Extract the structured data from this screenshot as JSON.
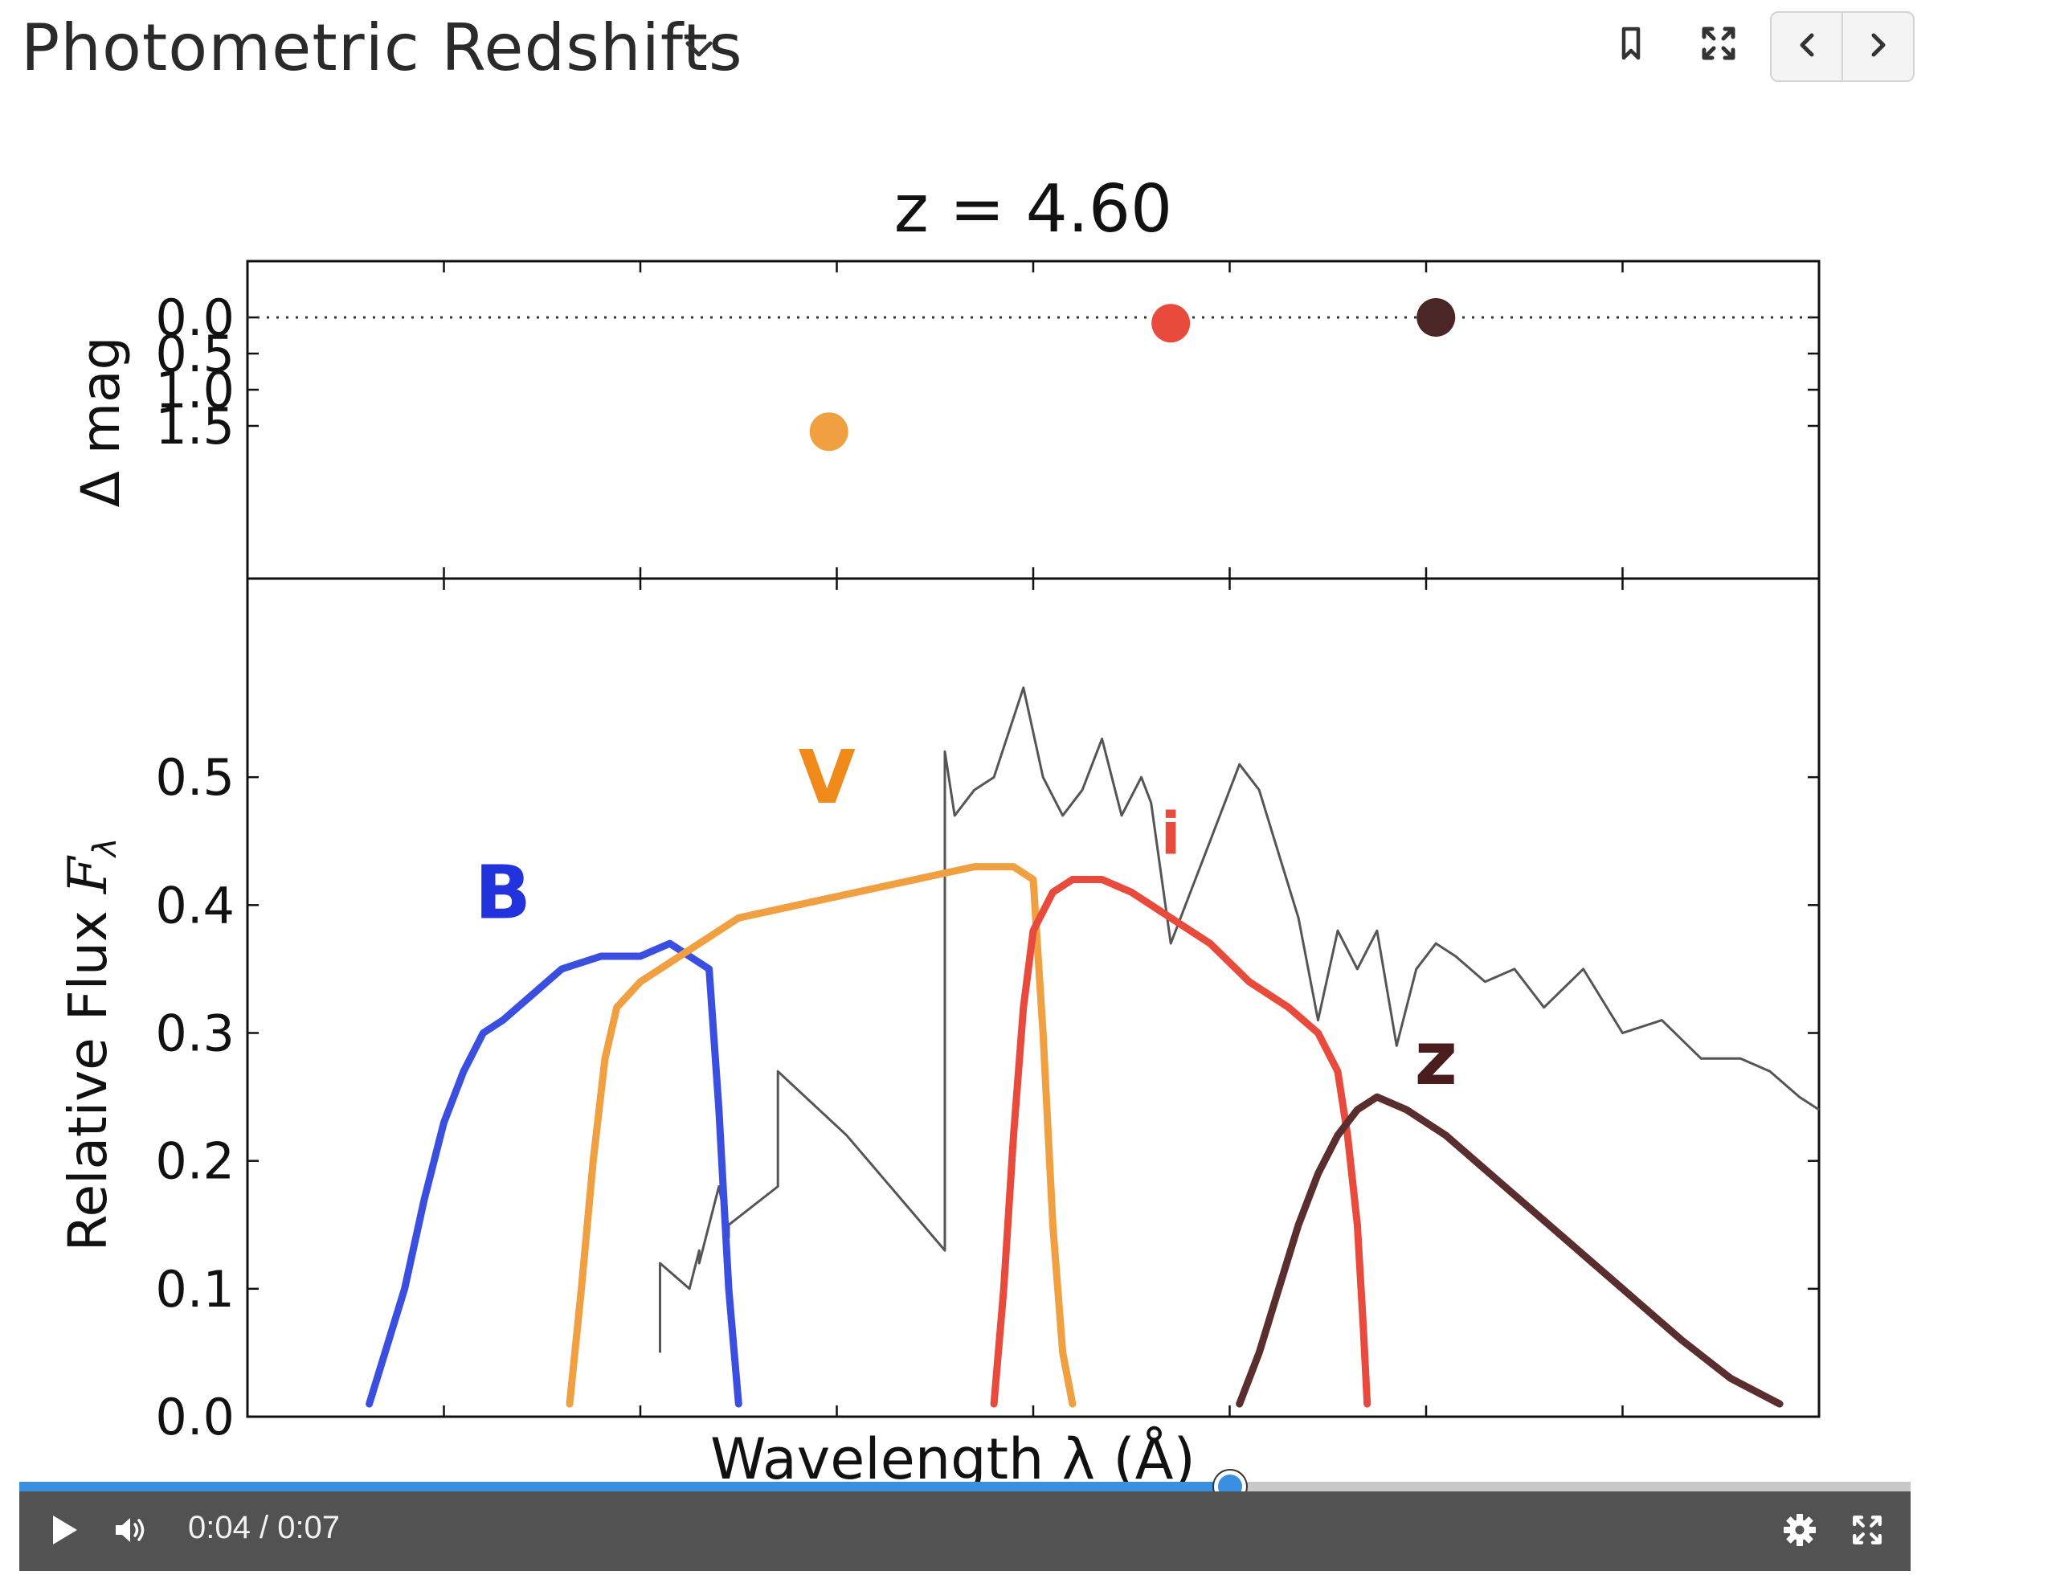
{
  "header": {
    "title": "Photometric Redshifts",
    "icons": [
      "chevron-down-icon",
      "bookmark-icon",
      "fullscreen-icon",
      "chevron-left-icon",
      "chevron-right-icon"
    ]
  },
  "player": {
    "time_display": "0:04 / 0:07",
    "progress": 0.64,
    "accent_color": "#3b8fe0",
    "icons": [
      "play-icon",
      "volume-icon",
      "settings-icon",
      "fullscreen-icon"
    ]
  },
  "chart_data": [
    {
      "type": "scatter",
      "title": "z = 4.60",
      "ylabel": "Δ mag",
      "yticks": [
        "0.0",
        "0.5",
        "1.0",
        "1.5"
      ],
      "ylim": [
        1.8,
        -0.4
      ],
      "xlim": [
        0,
        8
      ],
      "reference_line": {
        "y": 0.0,
        "style": "dotted"
      },
      "points": [
        {
          "band": "V",
          "x": 2.96,
          "y": 1.58,
          "color": "#f0a040"
        },
        {
          "band": "i",
          "x": 4.7,
          "y": 0.08,
          "color": "#e84a3c"
        },
        {
          "band": "z",
          "x": 6.05,
          "y": 0.0,
          "color": "#4a2626"
        }
      ]
    },
    {
      "type": "line",
      "xlabel": "Wavelength  λ (Å)",
      "ylabel": "Relative Flux",
      "ylabel_symbol": "F",
      "ylabel_subscript": "λ",
      "yticks": [
        "0.0",
        "0.1",
        "0.2",
        "0.3",
        "0.4",
        "0.5"
      ],
      "ylim": [
        0,
        0.6
      ],
      "xlim": [
        0,
        8
      ],
      "filters": [
        {
          "name": "B",
          "color": "#3a4ee0",
          "label_color": "#2233dd",
          "x": [
            0.62,
            0.8,
            0.9,
            1.0,
            1.1,
            1.2,
            1.3,
            1.45,
            1.6,
            1.8,
            2.0,
            2.15,
            2.25,
            2.35,
            2.4,
            2.45,
            2.5
          ],
          "y": [
            0.01,
            0.1,
            0.17,
            0.23,
            0.27,
            0.3,
            0.31,
            0.33,
            0.35,
            0.36,
            0.36,
            0.37,
            0.36,
            0.35,
            0.24,
            0.1,
            0.01
          ]
        },
        {
          "name": "V",
          "color": "#f0a040",
          "label_color": "#f08a1a",
          "x": [
            1.64,
            1.7,
            1.76,
            1.82,
            1.88,
            2.0,
            2.2,
            2.5,
            2.8,
            3.1,
            3.4,
            3.7,
            3.9,
            4.0,
            4.05,
            4.1,
            4.15,
            4.2
          ],
          "y": [
            0.01,
            0.1,
            0.2,
            0.28,
            0.32,
            0.34,
            0.36,
            0.39,
            0.4,
            0.41,
            0.42,
            0.43,
            0.43,
            0.42,
            0.3,
            0.15,
            0.05,
            0.01
          ]
        },
        {
          "name": "i",
          "color": "#e84a3c",
          "label_color": "#e84a3c",
          "x": [
            3.8,
            3.85,
            3.9,
            3.95,
            4.0,
            4.1,
            4.2,
            4.35,
            4.5,
            4.7,
            4.9,
            5.1,
            5.3,
            5.45,
            5.55,
            5.6,
            5.65,
            5.68,
            5.7
          ],
          "y": [
            0.01,
            0.1,
            0.22,
            0.32,
            0.38,
            0.41,
            0.42,
            0.42,
            0.41,
            0.39,
            0.37,
            0.34,
            0.32,
            0.3,
            0.27,
            0.22,
            0.15,
            0.07,
            0.01
          ]
        },
        {
          "name": "z",
          "color": "#5a2e2e",
          "label_color": "#4a1c1c",
          "x": [
            5.05,
            5.15,
            5.25,
            5.35,
            5.45,
            5.55,
            5.65,
            5.75,
            5.9,
            6.1,
            6.4,
            6.7,
            7.0,
            7.3,
            7.55,
            7.8
          ],
          "y": [
            0.01,
            0.05,
            0.1,
            0.15,
            0.19,
            0.22,
            0.24,
            0.25,
            0.24,
            0.22,
            0.18,
            0.14,
            0.1,
            0.06,
            0.03,
            0.01
          ]
        }
      ],
      "spectrum": {
        "color": "#555555",
        "x": [
          2.1,
          2.1,
          2.25,
          2.3,
          2.3,
          2.4,
          2.45,
          2.45,
          2.7,
          2.7,
          2.7,
          3.05,
          3.55,
          3.55,
          3.6,
          3.7,
          3.8,
          3.95,
          4.05,
          4.15,
          4.25,
          4.35,
          4.45,
          4.55,
          4.6,
          4.7,
          4.8,
          4.9,
          4.95,
          5.05,
          5.15,
          5.25,
          5.35,
          5.45,
          5.55,
          5.65,
          5.75,
          5.85,
          5.95,
          6.05,
          6.15,
          6.3,
          6.45,
          6.6,
          6.8,
          7.0,
          7.2,
          7.4,
          7.6,
          7.75,
          7.9,
          8.0
        ],
        "y": [
          0.05,
          0.12,
          0.1,
          0.13,
          0.12,
          0.18,
          0.14,
          0.15,
          0.18,
          0.27,
          0.27,
          0.22,
          0.13,
          0.52,
          0.47,
          0.49,
          0.5,
          0.57,
          0.5,
          0.47,
          0.49,
          0.53,
          0.47,
          0.5,
          0.48,
          0.37,
          0.41,
          0.45,
          0.47,
          0.51,
          0.49,
          0.44,
          0.39,
          0.31,
          0.38,
          0.35,
          0.38,
          0.29,
          0.35,
          0.37,
          0.36,
          0.34,
          0.35,
          0.32,
          0.35,
          0.3,
          0.31,
          0.28,
          0.28,
          0.27,
          0.25,
          0.24
        ]
      },
      "labels": [
        {
          "text": "B",
          "x": 1.3,
          "y": 0.39
        },
        {
          "text": "V",
          "x": 2.95,
          "y": 0.48
        },
        {
          "text": "i",
          "x": 4.7,
          "y": 0.44
        },
        {
          "text": "z",
          "x": 6.05,
          "y": 0.26
        }
      ]
    }
  ]
}
